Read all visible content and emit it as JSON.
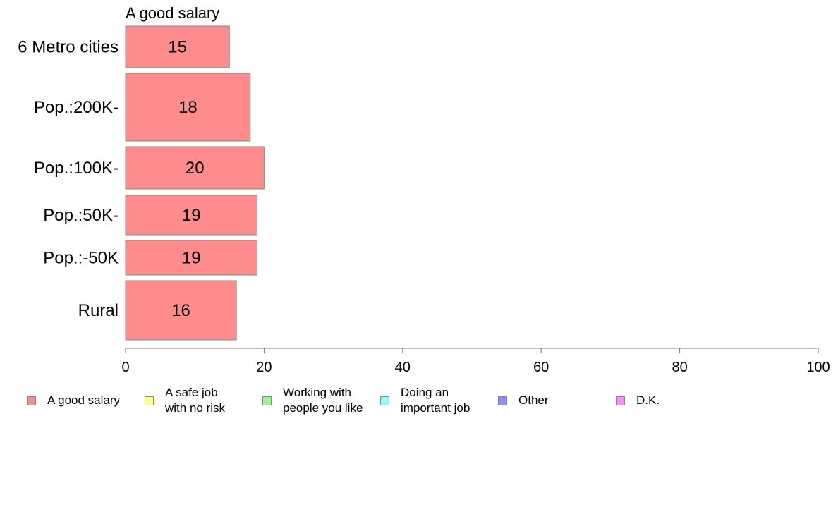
{
  "chart_data": {
    "type": "bar",
    "orientation": "horizontal",
    "title": "A good salary",
    "categories": [
      "6 Metro cities",
      "Pop.:200K-",
      "Pop.:100K-",
      "Pop.:50K-",
      "Pop.:-50K",
      "Rural"
    ],
    "values": [
      15,
      18,
      20,
      19,
      19,
      16
    ],
    "data_labels": [
      "15",
      "18",
      "20",
      "19",
      "19",
      "16"
    ],
    "bar_color": "#ff8c8c",
    "xlim": [
      0,
      100
    ],
    "x_ticks": [
      "0",
      "20",
      "40",
      "60",
      "80",
      "100"
    ],
    "grid": false,
    "legend_placement": "bottom",
    "legend": [
      {
        "label": "A good salary",
        "color": "#ff8c8c"
      },
      {
        "label": "A safe job\nwith no risk",
        "color": "#ffff8c"
      },
      {
        "label": "Working with\npeople you like",
        "color": "#8cff8c"
      },
      {
        "label": "Doing an\nimportant job",
        "color": "#8cffff"
      },
      {
        "label": "Other",
        "color": "#8c8cff"
      },
      {
        "label": "D.K.",
        "color": "#ff8cff"
      }
    ]
  }
}
